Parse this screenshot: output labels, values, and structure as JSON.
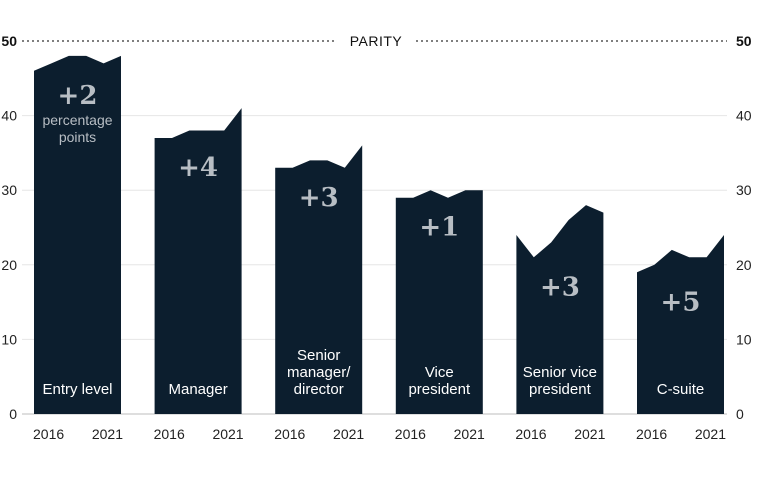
{
  "chart_data": {
    "type": "area",
    "x": [
      "2016",
      "2017",
      "2018",
      "2019",
      "2020",
      "2021"
    ],
    "x_tick_labels": [
      "2016",
      "2021"
    ],
    "ylim": [
      0,
      50
    ],
    "y_ticks": [
      "0",
      "10",
      "20",
      "30",
      "40",
      "50"
    ],
    "grid": true,
    "colors": {
      "area": "#0c1e2e",
      "grid": "#e6e6e6",
      "change_text": "#b8bec4"
    },
    "reference_line": {
      "label": "PARITY",
      "value": 50
    },
    "series": [
      {
        "name": "Entry level",
        "label_lines": [
          "Entry level"
        ],
        "values": [
          46,
          47,
          48,
          48,
          47,
          48
        ],
        "change": "+2",
        "change_note_lines": [
          "percentage",
          "points"
        ]
      },
      {
        "name": "Manager",
        "label_lines": [
          "Manager"
        ],
        "values": [
          37,
          37,
          38,
          38,
          38,
          41
        ],
        "change": "+4",
        "change_note_lines": []
      },
      {
        "name": "Senior manager/director",
        "label_lines": [
          "Senior",
          "manager/",
          "director"
        ],
        "values": [
          33,
          33,
          34,
          34,
          33,
          36
        ],
        "change": "+3",
        "change_note_lines": []
      },
      {
        "name": "Vice president",
        "label_lines": [
          "Vice",
          "president"
        ],
        "values": [
          29,
          29,
          30,
          29,
          30,
          30
        ],
        "change": "+1",
        "change_note_lines": []
      },
      {
        "name": "Senior vice president",
        "label_lines": [
          "Senior vice",
          "president"
        ],
        "values": [
          24,
          21,
          23,
          26,
          28,
          27
        ],
        "change": "+3",
        "change_note_lines": []
      },
      {
        "name": "C-suite",
        "label_lines": [
          "C-suite"
        ],
        "values": [
          19,
          20,
          22,
          21,
          21,
          24
        ],
        "change": "+5",
        "change_note_lines": []
      }
    ]
  }
}
